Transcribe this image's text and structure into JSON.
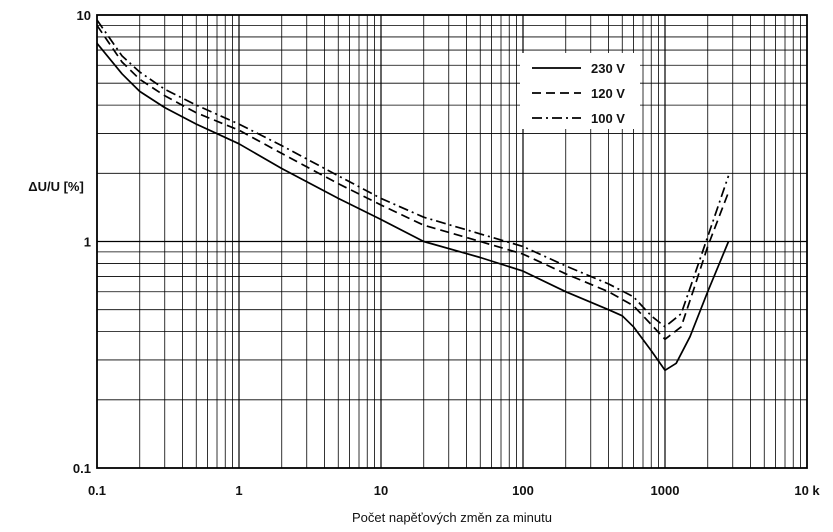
{
  "chart_data": {
    "type": "line",
    "x_scale": "log",
    "y_scale": "log",
    "xlim": [
      0.1,
      10000
    ],
    "ylim": [
      0.1,
      10
    ],
    "xlabel": "Počet napěťových změn za minutu",
    "ylabel": "ΔU/U [%]",
    "x_tick_labels": [
      "0.1",
      "1",
      "10",
      "100",
      "1000",
      "10 k"
    ],
    "y_tick_labels": [
      "10",
      "1",
      "0.1"
    ],
    "grid": true,
    "legend_position": "top-right",
    "series": [
      {
        "name": "230 V",
        "style": "solid",
        "x": [
          0.1,
          0.15,
          0.2,
          0.3,
          0.5,
          1,
          2,
          5,
          10,
          20,
          50,
          100,
          200,
          400,
          500,
          600,
          800,
          1000,
          1200,
          1500,
          2000,
          2800
        ],
        "y": [
          7.5,
          5.5,
          4.6,
          3.9,
          3.3,
          2.7,
          2.1,
          1.55,
          1.25,
          1.0,
          0.85,
          0.74,
          0.6,
          0.5,
          0.47,
          0.42,
          0.33,
          0.27,
          0.29,
          0.38,
          0.6,
          1.0
        ]
      },
      {
        "name": "120 V",
        "style": "dashed",
        "x": [
          0.1,
          0.15,
          0.2,
          0.3,
          0.5,
          1,
          2,
          5,
          10,
          20,
          50,
          100,
          200,
          400,
          600,
          800,
          1000,
          1300,
          1600,
          2000,
          2800
        ],
        "y": [
          9.0,
          6.2,
          5.2,
          4.4,
          3.7,
          3.1,
          2.45,
          1.8,
          1.45,
          1.18,
          1.0,
          0.88,
          0.72,
          0.6,
          0.52,
          0.43,
          0.37,
          0.42,
          0.62,
          0.95,
          1.65
        ]
      },
      {
        "name": "100 V",
        "style": "dashdot",
        "x": [
          0.1,
          0.15,
          0.2,
          0.3,
          0.5,
          1,
          2,
          5,
          10,
          20,
          50,
          100,
          200,
          400,
          600,
          800,
          1000,
          1300,
          1600,
          2000,
          2800
        ],
        "y": [
          9.5,
          6.6,
          5.6,
          4.7,
          4.0,
          3.3,
          2.65,
          1.95,
          1.55,
          1.28,
          1.08,
          0.95,
          0.78,
          0.65,
          0.57,
          0.47,
          0.42,
          0.48,
          0.7,
          1.05,
          1.95
        ]
      }
    ]
  }
}
